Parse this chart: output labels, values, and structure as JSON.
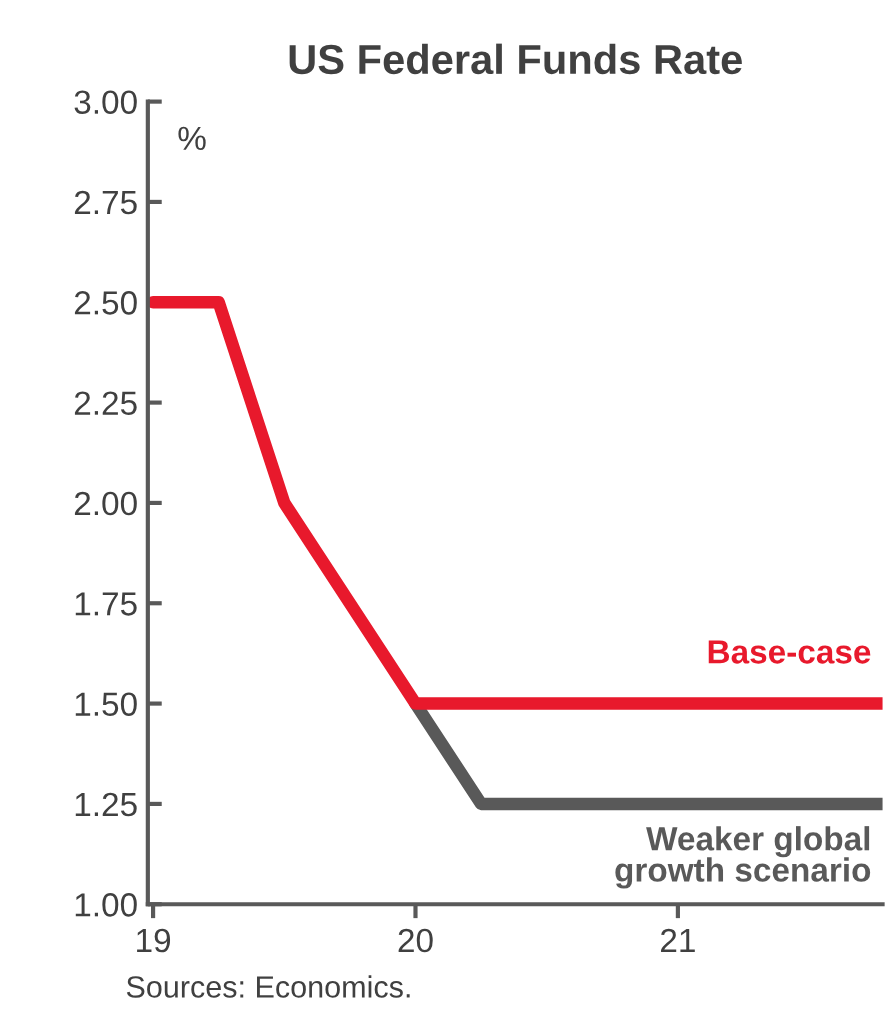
{
  "chart_data": {
    "type": "line",
    "title": "US Federal Funds Rate",
    "ylabel": "%",
    "series": [
      {
        "name": "Weaker global\ngrowth scenario",
        "color": "#595959",
        "x": [
          20.0,
          20.25,
          21.78
        ],
        "values": [
          1.5,
          1.25,
          1.25
        ]
      },
      {
        "name": "Base-case",
        "color": "#e8192c",
        "x": [
          19.0,
          19.25,
          19.5,
          20.0,
          21.78
        ],
        "values": [
          2.5,
          2.5,
          2.0,
          1.5,
          1.5
        ]
      }
    ],
    "xlim": [
      18.98,
      21.78
    ],
    "xticks": [
      19,
      20,
      21
    ],
    "ylim": [
      1.0,
      3.0
    ],
    "yticks": [
      {
        "value": 1.0,
        "label": "1.00"
      },
      {
        "value": 1.25,
        "label": "1.25"
      },
      {
        "value": 1.5,
        "label": "1.50"
      },
      {
        "value": 1.75,
        "label": "1.75"
      },
      {
        "value": 2.0,
        "label": "2.00"
      },
      {
        "value": 2.25,
        "label": "2.25"
      },
      {
        "value": 2.5,
        "label": "2.50"
      },
      {
        "value": 2.75,
        "label": "2.75"
      },
      {
        "value": 3.0,
        "label": "3.00"
      }
    ],
    "grid": false,
    "marker": "none",
    "line_style": "solid",
    "annotations": [
      "Sources: Economics."
    ]
  }
}
